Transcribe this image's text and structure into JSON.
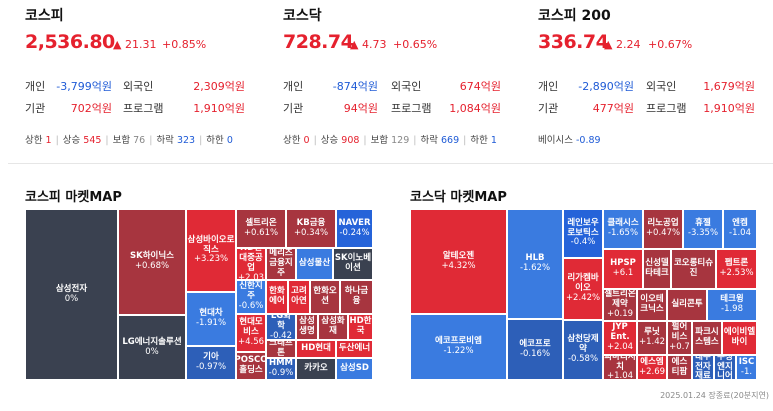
{
  "indices": [
    {
      "name": "코스피",
      "price": "2,536.80",
      "change": "▲ 21.31",
      "pct": "+0.85%",
      "rows": [
        {
          "l1": "개인",
          "v1": "-3,799억원",
          "c1": "neg",
          "l2": "외국인",
          "v2": "2,309억원",
          "c2": "pos"
        },
        {
          "l1": "기관",
          "v1": "702억원",
          "c1": "pos",
          "l2": "프로그램",
          "v2": "1,910억원",
          "c2": "pos"
        }
      ],
      "breadth": {
        "upper_label": "상한",
        "upper": "1",
        "rise_label": "상승",
        "rise": "545",
        "flat_label": "보합",
        "flat": "76",
        "fall_label": "하락",
        "fall": "323",
        "lower_label": "하한",
        "lower": "0"
      }
    },
    {
      "name": "코스닥",
      "price": "728.74",
      "change": "▲ 4.73",
      "pct": "+0.65%",
      "rows": [
        {
          "l1": "개인",
          "v1": "-874억원",
          "c1": "neg",
          "l2": "외국인",
          "v2": "674억원",
          "c2": "pos"
        },
        {
          "l1": "기관",
          "v1": "94억원",
          "c1": "pos",
          "l2": "프로그램",
          "v2": "1,084억원",
          "c2": "pos"
        }
      ],
      "breadth": {
        "upper_label": "상한",
        "upper": "0",
        "rise_label": "상승",
        "rise": "908",
        "flat_label": "보합",
        "flat": "129",
        "fall_label": "하락",
        "fall": "669",
        "lower_label": "하한",
        "lower": "1"
      }
    },
    {
      "name": "코스피 200",
      "price": "336.74",
      "change": "▲ 2.24",
      "pct": "+0.67%",
      "rows": [
        {
          "l1": "개인",
          "v1": "-2,890억원",
          "c1": "neg",
          "l2": "외국인",
          "v2": "1,679억원",
          "c2": "pos"
        },
        {
          "l1": "기관",
          "v1": "477억원",
          "c1": "pos",
          "l2": "프로그램",
          "v2": "1,910억원",
          "c2": "pos"
        }
      ],
      "basis": {
        "label": "베이시스",
        "value": "-0.89"
      }
    }
  ],
  "maps": {
    "kospi": {
      "title": "코스피 마켓MAP",
      "cells": [
        {
          "name": "삼성전자",
          "value": "0%",
          "color": "c-dark"
        },
        {
          "name": "SK하이닉스",
          "value": "+0.68%",
          "color": "c-r1"
        },
        {
          "name": "LG에너지솔루션",
          "value": "0%",
          "color": "c-dark"
        },
        {
          "name": "삼성바이오로직스",
          "value": "+3.23%",
          "color": "c-r2"
        },
        {
          "name": "현대차",
          "value": "-1.91%",
          "color": "c-b1"
        },
        {
          "name": "기아",
          "value": "-0.97%",
          "color": "c-b2"
        },
        {
          "name": "셀트리온",
          "value": "+0.61%",
          "color": "c-r1"
        },
        {
          "name": "KB금융",
          "value": "+0.34%",
          "color": "c-r1"
        },
        {
          "name": "NAVER",
          "value": "-0.24%",
          "color": "c-b0"
        },
        {
          "name": "HD현대중공업",
          "value": "+2.03",
          "color": "c-r2"
        },
        {
          "name": "메리츠금융지주",
          "value": "",
          "color": "c-r1"
        },
        {
          "name": "삼성물산",
          "value": "",
          "color": "c-b1"
        },
        {
          "name": "SK이노베이션",
          "value": "",
          "color": "c-dark"
        },
        {
          "name": "신한지주",
          "value": "-0.6%",
          "color": "c-b1"
        },
        {
          "name": "한화에어",
          "value": "",
          "color": "c-r2"
        },
        {
          "name": "고려아연",
          "value": "",
          "color": "c-r2"
        },
        {
          "name": "한화오션",
          "value": "",
          "color": "c-r1"
        },
        {
          "name": "하나금융",
          "value": "",
          "color": "c-r1"
        },
        {
          "name": "현대모비스",
          "value": "+4.56",
          "color": "c-r2"
        },
        {
          "name": "LG화학",
          "value": "-0.42",
          "color": "c-b2"
        },
        {
          "name": "삼성생명",
          "value": "",
          "color": "c-r1"
        },
        {
          "name": "삼성화재",
          "value": "",
          "color": "c-r1"
        },
        {
          "name": "HD한국",
          "value": "",
          "color": "c-r2"
        },
        {
          "name": "크래프톤",
          "value": "",
          "color": "c-r1"
        },
        {
          "name": "HD현대",
          "value": "",
          "color": "c-r2"
        },
        {
          "name": "두산에너",
          "value": "",
          "color": "c-r2"
        },
        {
          "name": "POSCO홀딩스",
          "value": "",
          "color": "c-r1"
        },
        {
          "name": "HMM",
          "value": "-0.9%",
          "color": "c-b2"
        },
        {
          "name": "카카오",
          "value": "",
          "color": "c-dark"
        },
        {
          "name": "삼성SD",
          "value": "",
          "color": "c-b1"
        }
      ]
    },
    "kosdaq": {
      "title": "코스닥 마켓MAP",
      "cells": [
        {
          "name": "알테오젠",
          "value": "+4.32%",
          "color": "c-r2"
        },
        {
          "name": "에코프로비엠",
          "value": "-1.22%",
          "color": "c-b1"
        },
        {
          "name": "HLB",
          "value": "-1.62%",
          "color": "c-b1"
        },
        {
          "name": "에코프로",
          "value": "-0.16%",
          "color": "c-b2"
        },
        {
          "name": "레인보우로보틱스",
          "value": "-0.4%",
          "color": "c-b0"
        },
        {
          "name": "리가켐바이오",
          "value": "+2.42%",
          "color": "c-r2"
        },
        {
          "name": "삼천당제약",
          "value": "-0.58%",
          "color": "c-b2"
        },
        {
          "name": "클래시스",
          "value": "-1.65%",
          "color": "c-b1"
        },
        {
          "name": "리노공업",
          "value": "+0.47%",
          "color": "c-r1"
        },
        {
          "name": "휴젤",
          "value": "-3.35%",
          "color": "c-b1"
        },
        {
          "name": "엔켐",
          "value": "-1.04",
          "color": "c-b1"
        },
        {
          "name": "HPSP",
          "value": "+6.1",
          "color": "c-r2"
        },
        {
          "name": "신성델타테크",
          "value": "",
          "color": "c-r1"
        },
        {
          "name": "코오롱티슈진",
          "value": "",
          "color": "c-r1"
        },
        {
          "name": "펩트론",
          "value": "+2.53%",
          "color": "c-r2"
        },
        {
          "name": "셀트리온제약",
          "value": "+0.19",
          "color": "c-r1"
        },
        {
          "name": "이오테크닉스",
          "value": "",
          "color": "c-r1"
        },
        {
          "name": "실리콘투",
          "value": "",
          "color": "c-r1"
        },
        {
          "name": "테크윙",
          "value": "-1.98",
          "color": "c-b1"
        },
        {
          "name": "JYP Ent.",
          "value": "+2.04",
          "color": "c-r2"
        },
        {
          "name": "루닛",
          "value": "+1.42",
          "color": "c-r1"
        },
        {
          "name": "펄어비스",
          "value": "+0.7",
          "color": "c-r1"
        },
        {
          "name": "파크시스템스",
          "value": "",
          "color": "c-r1"
        },
        {
          "name": "에이비엘바이",
          "value": "",
          "color": "c-r2"
        },
        {
          "name": "파마리서치",
          "value": "+1.04",
          "color": "c-r1"
        },
        {
          "name": "에스엠",
          "value": "+2.69",
          "color": "c-r2"
        },
        {
          "name": "에스티팜",
          "value": "",
          "color": "c-r1"
        },
        {
          "name": "대주전자재료",
          "value": "",
          "color": "c-b2"
        },
        {
          "name": "주성엔지니어",
          "value": "",
          "color": "c-b2"
        },
        {
          "name": "ISC",
          "value": "-1.",
          "color": "c-b1"
        }
      ]
    }
  },
  "footnote": "2025.01.24 장종료(20분지연)"
}
